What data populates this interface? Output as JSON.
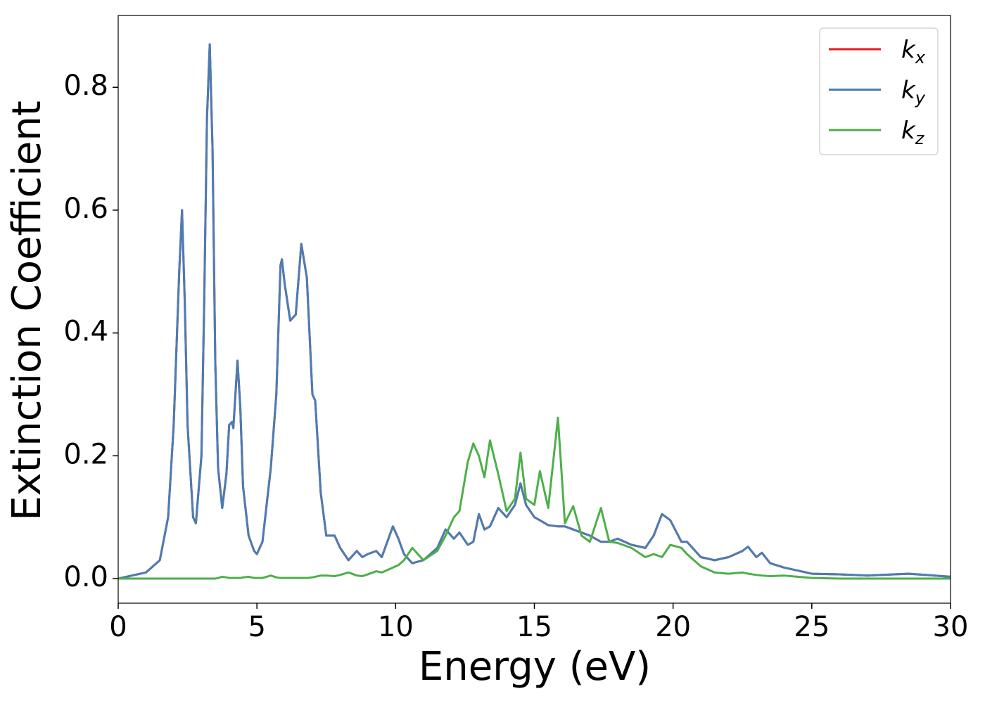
{
  "chart_data": {
    "type": "line",
    "xlabel": "Energy (eV)",
    "ylabel": "Extinction Coefficient",
    "xlim": [
      0,
      30
    ],
    "ylim": [
      -0.04,
      0.917
    ],
    "xticks": [
      0,
      5,
      10,
      15,
      20,
      25,
      30
    ],
    "yticks": [
      {
        "value": 0,
        "label": "0.0"
      },
      {
        "value": 0.2,
        "label": "0.2"
      },
      {
        "value": 0.4,
        "label": "0.4"
      },
      {
        "value": 0.6,
        "label": "0.6"
      },
      {
        "value": 0.8,
        "label": "0.8"
      }
    ],
    "legend": "upper right",
    "grid": false,
    "x": [
      0,
      1.0,
      1.5,
      1.8,
      2.0,
      2.2,
      2.3,
      2.4,
      2.5,
      2.7,
      2.8,
      3.0,
      3.1,
      3.2,
      3.3,
      3.4,
      3.5,
      3.6,
      3.75,
      3.9,
      4.0,
      4.1,
      4.15,
      4.3,
      4.4,
      4.5,
      4.7,
      4.9,
      5.0,
      5.2,
      5.5,
      5.7,
      5.85,
      5.9,
      6.0,
      6.2,
      6.4,
      6.6,
      6.8,
      7.0,
      7.1,
      7.3,
      7.5,
      7.8,
      8.0,
      8.3,
      8.6,
      8.8,
      9.0,
      9.3,
      9.5,
      9.9,
      10.1,
      10.3,
      10.6,
      11.0,
      11.5,
      11.8,
      12.1,
      12.3,
      12.6,
      12.8,
      13.0,
      13.2,
      13.4,
      13.7,
      14.0,
      14.3,
      14.5,
      14.7,
      15.0,
      15.2,
      15.5,
      15.85,
      16.1,
      16.4,
      16.7,
      17.0,
      17.4,
      17.7,
      18.0,
      18.5,
      19.0,
      19.3,
      19.6,
      19.9,
      20.3,
      20.5,
      21.0,
      21.5,
      22.0,
      22.5,
      22.7,
      23.0,
      23.2,
      23.5,
      24.0,
      25.0,
      26.0,
      27.0,
      28.5,
      30
    ],
    "series": [
      {
        "name": "kx",
        "color": "#e41a1c",
        "values": [
          0,
          0.01,
          0.03,
          0.1,
          0.25,
          0.5,
          0.6,
          0.45,
          0.25,
          0.1,
          0.09,
          0.2,
          0.45,
          0.75,
          0.87,
          0.7,
          0.35,
          0.18,
          0.115,
          0.17,
          0.25,
          0.255,
          0.245,
          0.355,
          0.28,
          0.15,
          0.07,
          0.045,
          0.04,
          0.06,
          0.18,
          0.3,
          0.51,
          0.52,
          0.48,
          0.42,
          0.43,
          0.545,
          0.49,
          0.3,
          0.29,
          0.14,
          0.07,
          0.07,
          0.05,
          0.03,
          0.045,
          0.035,
          0.04,
          0.045,
          0.035,
          0.085,
          0.065,
          0.04,
          0.025,
          0.03,
          0.05,
          0.08,
          0.065,
          0.075,
          0.055,
          0.06,
          0.105,
          0.08,
          0.085,
          0.115,
          0.1,
          0.12,
          0.155,
          0.12,
          0.1,
          0.095,
          0.087,
          0.085,
          0.085,
          0.08,
          0.075,
          0.07,
          0.06,
          0.06,
          0.065,
          0.055,
          0.05,
          0.07,
          0.105,
          0.095,
          0.06,
          0.06,
          0.035,
          0.03,
          0.035,
          0.045,
          0.052,
          0.035,
          0.042,
          0.025,
          0.018,
          0.008,
          0.007,
          0.005,
          0.008,
          0.003
        ]
      },
      {
        "name": "ky",
        "color": "#4a7db5",
        "values": [
          0,
          0.01,
          0.03,
          0.1,
          0.25,
          0.5,
          0.6,
          0.45,
          0.25,
          0.1,
          0.09,
          0.2,
          0.45,
          0.75,
          0.87,
          0.7,
          0.35,
          0.18,
          0.115,
          0.17,
          0.25,
          0.255,
          0.245,
          0.355,
          0.28,
          0.15,
          0.07,
          0.045,
          0.04,
          0.06,
          0.18,
          0.3,
          0.51,
          0.52,
          0.48,
          0.42,
          0.43,
          0.545,
          0.49,
          0.3,
          0.29,
          0.14,
          0.07,
          0.07,
          0.05,
          0.03,
          0.045,
          0.035,
          0.04,
          0.045,
          0.035,
          0.085,
          0.065,
          0.04,
          0.025,
          0.03,
          0.05,
          0.08,
          0.065,
          0.075,
          0.055,
          0.06,
          0.105,
          0.08,
          0.085,
          0.115,
          0.1,
          0.12,
          0.155,
          0.12,
          0.1,
          0.095,
          0.087,
          0.085,
          0.085,
          0.08,
          0.075,
          0.07,
          0.06,
          0.06,
          0.065,
          0.055,
          0.05,
          0.07,
          0.105,
          0.095,
          0.06,
          0.06,
          0.035,
          0.03,
          0.035,
          0.045,
          0.052,
          0.035,
          0.042,
          0.025,
          0.018,
          0.008,
          0.007,
          0.005,
          0.008,
          0.003
        ]
      },
      {
        "name": "kz",
        "color": "#4daf4a",
        "values": [
          0,
          0,
          0,
          0,
          0,
          0,
          0,
          0,
          0,
          0,
          0,
          0,
          0,
          0,
          0,
          0,
          0,
          0.001,
          0.003,
          0.002,
          0.001,
          0.001,
          0.001,
          0.001,
          0.001,
          0.002,
          0.003,
          0.001,
          0.001,
          0.001,
          0.005,
          0.002,
          0.001,
          0.001,
          0.001,
          0.001,
          0.001,
          0.001,
          0.001,
          0.002,
          0.003,
          0.005,
          0.005,
          0.004,
          0.006,
          0.01,
          0.005,
          0.004,
          0.007,
          0.012,
          0.01,
          0.018,
          0.022,
          0.03,
          0.05,
          0.03,
          0.045,
          0.07,
          0.1,
          0.11,
          0.19,
          0.22,
          0.2,
          0.165,
          0.225,
          0.17,
          0.11,
          0.13,
          0.205,
          0.13,
          0.12,
          0.175,
          0.115,
          0.262,
          0.09,
          0.118,
          0.07,
          0.06,
          0.115,
          0.06,
          0.058,
          0.05,
          0.035,
          0.04,
          0.035,
          0.055,
          0.05,
          0.04,
          0.02,
          0.01,
          0.008,
          0.01,
          0.008,
          0.006,
          0.005,
          0.004,
          0.005,
          0.001,
          0,
          0,
          0,
          0
        ]
      }
    ]
  }
}
